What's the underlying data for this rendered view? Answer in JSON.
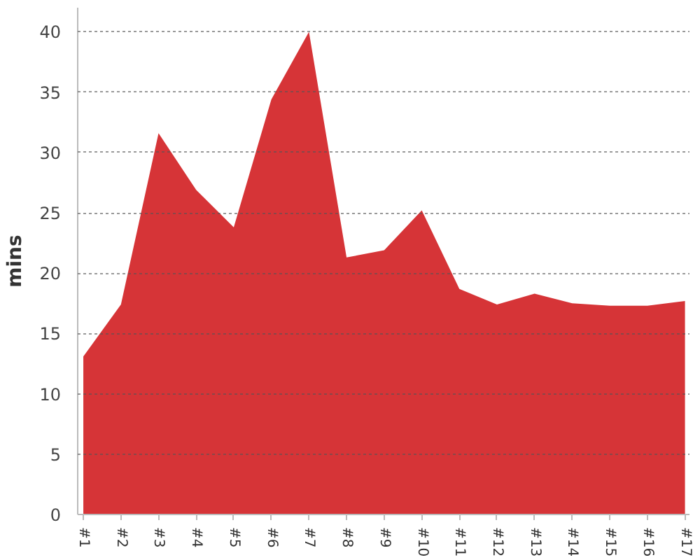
{
  "chart_data": {
    "type": "area",
    "ylabel": "mins",
    "categories": [
      "#1",
      "#2",
      "#3",
      "#4",
      "#5",
      "#6",
      "#7",
      "#8",
      "#9",
      "#10",
      "#11",
      "#12",
      "#13",
      "#14",
      "#15",
      "#16",
      "#17"
    ],
    "values": [
      13.1,
      17.4,
      31.6,
      26.9,
      23.8,
      34.4,
      40,
      21.3,
      21.9,
      25.2,
      18.7,
      17.4,
      18.3,
      17.5,
      17.3,
      17.3,
      17.7
    ],
    "color": "#d63437",
    "ylim": [
      0,
      42
    ],
    "yticks": [
      0,
      5,
      10,
      15,
      20,
      25,
      30,
      35,
      40
    ],
    "grid": "y"
  }
}
